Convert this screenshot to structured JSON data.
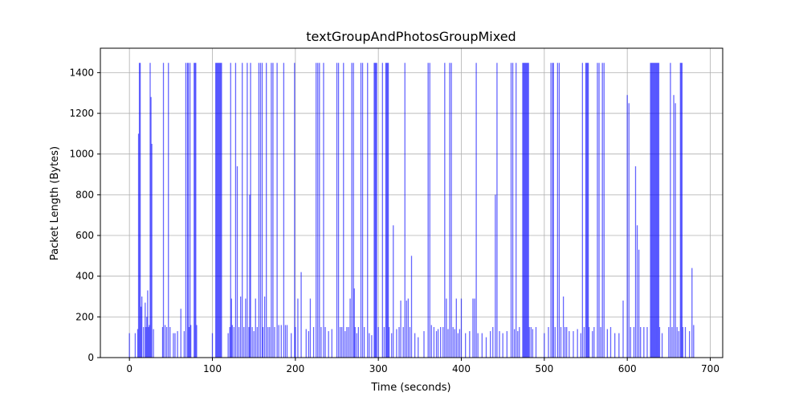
{
  "chart_data": {
    "type": "line",
    "title": "textGroupAndPhotosGroupMixed",
    "xlabel": "Time (seconds)",
    "ylabel": "Packet Length (Bytes)",
    "xlim": [
      -35,
      715
    ],
    "ylim": [
      0,
      1520
    ],
    "xticks": [
      0,
      100,
      200,
      300,
      400,
      500,
      600,
      700
    ],
    "yticks": [
      0,
      200,
      400,
      600,
      800,
      1000,
      1200,
      1400
    ],
    "grid": true,
    "colors": {
      "series": "#0000ff",
      "grid": "#b0b0b0",
      "axes": "#000000"
    },
    "series": [
      {
        "values_note": "",
        "points": [
          [
            0,
            120
          ],
          [
            7,
            120
          ],
          [
            10,
            140
          ],
          [
            11,
            1100
          ],
          [
            12,
            1448
          ],
          [
            13,
            1448
          ],
          [
            14,
            250
          ],
          [
            15,
            300
          ],
          [
            17,
            150
          ],
          [
            19,
            270
          ],
          [
            20,
            150
          ],
          [
            21,
            200
          ],
          [
            22,
            330
          ],
          [
            23,
            150
          ],
          [
            24,
            160
          ],
          [
            25,
            1448
          ],
          [
            26,
            1280
          ],
          [
            27,
            1050
          ],
          [
            29,
            140
          ],
          [
            40,
            150
          ],
          [
            41,
            1448
          ],
          [
            43,
            160
          ],
          [
            45,
            150
          ],
          [
            47,
            1448
          ],
          [
            49,
            150
          ],
          [
            53,
            120
          ],
          [
            55,
            120
          ],
          [
            58,
            130
          ],
          [
            62,
            240
          ],
          [
            66,
            130
          ],
          [
            68,
            1448
          ],
          [
            70,
            1448
          ],
          [
            71,
            1448
          ],
          [
            72,
            150
          ],
          [
            73,
            1448
          ],
          [
            74,
            160
          ],
          [
            78,
            1448
          ],
          [
            79,
            1448
          ],
          [
            80,
            1448
          ],
          [
            81,
            160
          ],
          [
            100,
            120
          ],
          [
            104,
            1448
          ],
          [
            105,
            1448
          ],
          [
            106,
            1448
          ],
          [
            107,
            1448
          ],
          [
            108,
            1448
          ],
          [
            109,
            1448
          ],
          [
            110,
            1448
          ],
          [
            111,
            1448
          ],
          [
            119,
            120
          ],
          [
            121,
            150
          ],
          [
            122,
            1448
          ],
          [
            123,
            290
          ],
          [
            124,
            160
          ],
          [
            126,
            150
          ],
          [
            128,
            1448
          ],
          [
            130,
            940
          ],
          [
            132,
            150
          ],
          [
            134,
            300
          ],
          [
            136,
            1448
          ],
          [
            138,
            150
          ],
          [
            140,
            290
          ],
          [
            142,
            1448
          ],
          [
            144,
            150
          ],
          [
            145,
            800
          ],
          [
            146,
            1448
          ],
          [
            148,
            150
          ],
          [
            150,
            130
          ],
          [
            152,
            290
          ],
          [
            154,
            150
          ],
          [
            156,
            1448
          ],
          [
            158,
            1448
          ],
          [
            160,
            1448
          ],
          [
            161,
            150
          ],
          [
            163,
            300
          ],
          [
            165,
            1448
          ],
          [
            167,
            150
          ],
          [
            169,
            150
          ],
          [
            171,
            1448
          ],
          [
            173,
            1448
          ],
          [
            175,
            150
          ],
          [
            178,
            1448
          ],
          [
            180,
            160
          ],
          [
            183,
            160
          ],
          [
            186,
            1448
          ],
          [
            188,
            160
          ],
          [
            190,
            160
          ],
          [
            195,
            120
          ],
          [
            199,
            1448
          ],
          [
            200,
            150
          ],
          [
            203,
            290
          ],
          [
            207,
            420
          ],
          [
            213,
            140
          ],
          [
            216,
            130
          ],
          [
            218,
            290
          ],
          [
            222,
            150
          ],
          [
            225,
            1448
          ],
          [
            227,
            1448
          ],
          [
            229,
            1448
          ],
          [
            231,
            150
          ],
          [
            234,
            1448
          ],
          [
            236,
            150
          ],
          [
            240,
            130
          ],
          [
            244,
            140
          ],
          [
            250,
            1448
          ],
          [
            252,
            1448
          ],
          [
            254,
            150
          ],
          [
            256,
            150
          ],
          [
            258,
            1448
          ],
          [
            260,
            130
          ],
          [
            262,
            150
          ],
          [
            264,
            150
          ],
          [
            266,
            290
          ],
          [
            268,
            1448
          ],
          [
            270,
            1448
          ],
          [
            271,
            340
          ],
          [
            272,
            150
          ],
          [
            274,
            120
          ],
          [
            276,
            150
          ],
          [
            279,
            1448
          ],
          [
            281,
            1448
          ],
          [
            283,
            150
          ],
          [
            287,
            1448
          ],
          [
            289,
            120
          ],
          [
            292,
            110
          ],
          [
            295,
            1448
          ],
          [
            296,
            1448
          ],
          [
            297,
            1448
          ],
          [
            298,
            1448
          ],
          [
            300,
            150
          ],
          [
            305,
            1448
          ],
          [
            307,
            150
          ],
          [
            309,
            1448
          ],
          [
            310,
            1448
          ],
          [
            311,
            1448
          ],
          [
            312,
            1448
          ],
          [
            313,
            150
          ],
          [
            316,
            120
          ],
          [
            318,
            650
          ],
          [
            322,
            140
          ],
          [
            325,
            150
          ],
          [
            327,
            280
          ],
          [
            330,
            150
          ],
          [
            332,
            1448
          ],
          [
            334,
            280
          ],
          [
            336,
            290
          ],
          [
            338,
            150
          ],
          [
            340,
            500
          ],
          [
            344,
            120
          ],
          [
            348,
            100
          ],
          [
            355,
            130
          ],
          [
            360,
            1448
          ],
          [
            362,
            1448
          ],
          [
            364,
            160
          ],
          [
            367,
            150
          ],
          [
            370,
            130
          ],
          [
            372,
            140
          ],
          [
            375,
            150
          ],
          [
            378,
            150
          ],
          [
            380,
            1448
          ],
          [
            382,
            290
          ],
          [
            384,
            140
          ],
          [
            386,
            1448
          ],
          [
            388,
            1448
          ],
          [
            390,
            150
          ],
          [
            392,
            140
          ],
          [
            394,
            290
          ],
          [
            396,
            120
          ],
          [
            398,
            140
          ],
          [
            400,
            290
          ],
          [
            405,
            120
          ],
          [
            410,
            130
          ],
          [
            414,
            290
          ],
          [
            416,
            290
          ],
          [
            418,
            1448
          ],
          [
            420,
            120
          ],
          [
            425,
            120
          ],
          [
            430,
            100
          ],
          [
            435,
            130
          ],
          [
            438,
            150
          ],
          [
            441,
            800
          ],
          [
            443,
            1448
          ],
          [
            446,
            130
          ],
          [
            450,
            120
          ],
          [
            455,
            130
          ],
          [
            460,
            1448
          ],
          [
            462,
            1448
          ],
          [
            464,
            140
          ],
          [
            466,
            1448
          ],
          [
            468,
            130
          ],
          [
            470,
            150
          ],
          [
            474,
            1448
          ],
          [
            475,
            1448
          ],
          [
            476,
            1448
          ],
          [
            477,
            1448
          ],
          [
            478,
            1448
          ],
          [
            479,
            1448
          ],
          [
            480,
            1448
          ],
          [
            481,
            1448
          ],
          [
            482,
            150
          ],
          [
            484,
            150
          ],
          [
            486,
            140
          ],
          [
            490,
            150
          ],
          [
            500,
            120
          ],
          [
            505,
            150
          ],
          [
            508,
            1448
          ],
          [
            510,
            1448
          ],
          [
            511,
            1448
          ],
          [
            513,
            150
          ],
          [
            516,
            1448
          ],
          [
            518,
            1448
          ],
          [
            520,
            150
          ],
          [
            523,
            300
          ],
          [
            525,
            150
          ],
          [
            527,
            150
          ],
          [
            530,
            130
          ],
          [
            535,
            130
          ],
          [
            540,
            140
          ],
          [
            544,
            120
          ],
          [
            546,
            1448
          ],
          [
            548,
            150
          ],
          [
            550,
            1448
          ],
          [
            551,
            1448
          ],
          [
            552,
            1448
          ],
          [
            553,
            1448
          ],
          [
            554,
            150
          ],
          [
            558,
            130
          ],
          [
            560,
            150
          ],
          [
            564,
            1448
          ],
          [
            566,
            1448
          ],
          [
            568,
            150
          ],
          [
            570,
            1448
          ],
          [
            572,
            1448
          ],
          [
            576,
            140
          ],
          [
            580,
            150
          ],
          [
            585,
            120
          ],
          [
            590,
            120
          ],
          [
            595,
            280
          ],
          [
            600,
            1290
          ],
          [
            602,
            1250
          ],
          [
            604,
            150
          ],
          [
            608,
            150
          ],
          [
            610,
            940
          ],
          [
            612,
            650
          ],
          [
            614,
            530
          ],
          [
            616,
            150
          ],
          [
            620,
            150
          ],
          [
            624,
            150
          ],
          [
            628,
            1448
          ],
          [
            629,
            1448
          ],
          [
            630,
            1448
          ],
          [
            631,
            1448
          ],
          [
            632,
            1448
          ],
          [
            633,
            1448
          ],
          [
            634,
            1448
          ],
          [
            635,
            1448
          ],
          [
            636,
            1448
          ],
          [
            637,
            1448
          ],
          [
            638,
            1448
          ],
          [
            639,
            150
          ],
          [
            642,
            120
          ],
          [
            650,
            150
          ],
          [
            652,
            1448
          ],
          [
            654,
            150
          ],
          [
            656,
            1290
          ],
          [
            658,
            1250
          ],
          [
            660,
            150
          ],
          [
            662,
            130
          ],
          [
            664,
            1448
          ],
          [
            665,
            1448
          ],
          [
            666,
            1448
          ],
          [
            667,
            150
          ],
          [
            670,
            150
          ],
          [
            675,
            130
          ],
          [
            678,
            440
          ],
          [
            680,
            160
          ]
        ]
      }
    ]
  }
}
